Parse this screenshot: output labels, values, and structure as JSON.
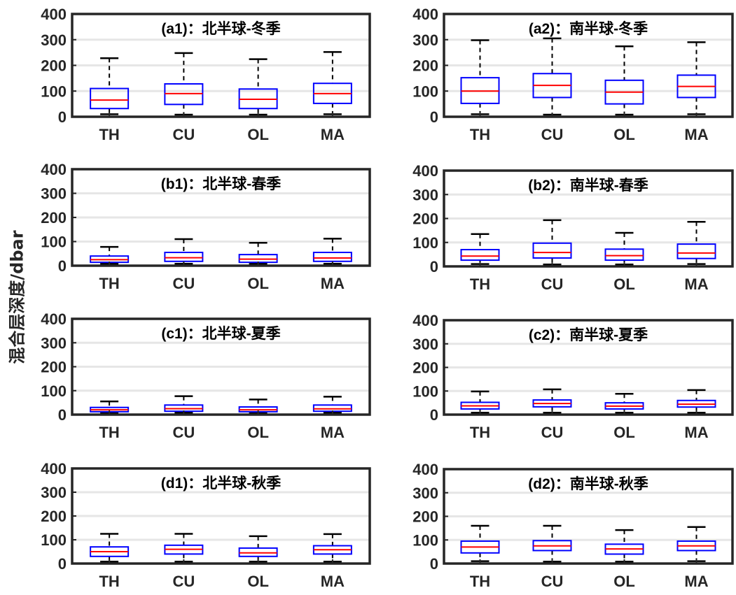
{
  "figure": {
    "ylabel": "混合层深度/dbar",
    "colors": {
      "box": "#0000FF",
      "median": "#FF0000",
      "whisker": "#000000",
      "axis": "#262626",
      "grid": "#E6E6E6"
    }
  },
  "chart_data": [
    {
      "type": "box",
      "title": "(a1)：北半球-冬季",
      "categories": [
        "TH",
        "CU",
        "OL",
        "MA"
      ],
      "ylim": [
        0,
        400
      ],
      "yticks": [
        0,
        100,
        200,
        300,
        400
      ],
      "grid": true,
      "boxes": [
        {
          "whislo": 10,
          "q1": 32,
          "med": 65,
          "q3": 110,
          "whishi": 228
        },
        {
          "whislo": 8,
          "q1": 48,
          "med": 90,
          "q3": 128,
          "whishi": 248
        },
        {
          "whislo": 8,
          "q1": 32,
          "med": 68,
          "q3": 108,
          "whishi": 224
        },
        {
          "whislo": 10,
          "q1": 52,
          "med": 90,
          "q3": 130,
          "whishi": 252
        }
      ]
    },
    {
      "type": "box",
      "title": "(a2)：南半球-冬季",
      "categories": [
        "TH",
        "CU",
        "OL",
        "MA"
      ],
      "ylim": [
        0,
        400
      ],
      "yticks": [
        0,
        100,
        200,
        300,
        400
      ],
      "grid": true,
      "boxes": [
        {
          "whislo": 10,
          "q1": 52,
          "med": 100,
          "q3": 152,
          "whishi": 298
        },
        {
          "whislo": 8,
          "q1": 75,
          "med": 122,
          "q3": 168,
          "whishi": 305
        },
        {
          "whislo": 8,
          "q1": 50,
          "med": 96,
          "q3": 142,
          "whishi": 274
        },
        {
          "whislo": 10,
          "q1": 75,
          "med": 118,
          "q3": 162,
          "whishi": 290
        }
      ]
    },
    {
      "type": "box",
      "title": "(b1)：北半球-春季",
      "categories": [
        "TH",
        "CU",
        "OL",
        "MA"
      ],
      "ylim": [
        0,
        400
      ],
      "yticks": [
        0,
        100,
        200,
        300,
        400
      ],
      "grid": true,
      "boxes": [
        {
          "whislo": 8,
          "q1": 14,
          "med": 25,
          "q3": 40,
          "whishi": 78
        },
        {
          "whislo": 8,
          "q1": 18,
          "med": 33,
          "q3": 55,
          "whishi": 110
        },
        {
          "whislo": 8,
          "q1": 14,
          "med": 27,
          "q3": 46,
          "whishi": 95
        },
        {
          "whislo": 8,
          "q1": 18,
          "med": 32,
          "q3": 55,
          "whishi": 112
        }
      ]
    },
    {
      "type": "box",
      "title": "(b2)：南半球-春季",
      "categories": [
        "TH",
        "CU",
        "OL",
        "MA"
      ],
      "ylim": [
        0,
        400
      ],
      "yticks": [
        0,
        100,
        200,
        300,
        400
      ],
      "grid": true,
      "boxes": [
        {
          "whislo": 10,
          "q1": 26,
          "med": 43,
          "q3": 70,
          "whishi": 135
        },
        {
          "whislo": 8,
          "q1": 35,
          "med": 58,
          "q3": 97,
          "whishi": 193
        },
        {
          "whislo": 8,
          "q1": 26,
          "med": 45,
          "q3": 72,
          "whishi": 140
        },
        {
          "whislo": 10,
          "q1": 33,
          "med": 56,
          "q3": 93,
          "whishi": 186
        }
      ]
    },
    {
      "type": "box",
      "title": "(c1)：北半球-夏季",
      "categories": [
        "TH",
        "CU",
        "OL",
        "MA"
      ],
      "ylim": [
        0,
        400
      ],
      "yticks": [
        0,
        100,
        200,
        300,
        400
      ],
      "grid": true,
      "boxes": [
        {
          "whislo": 8,
          "q1": 12,
          "med": 20,
          "q3": 30,
          "whishi": 55
        },
        {
          "whislo": 8,
          "q1": 14,
          "med": 25,
          "q3": 40,
          "whishi": 77
        },
        {
          "whislo": 8,
          "q1": 12,
          "med": 20,
          "q3": 32,
          "whishi": 63
        },
        {
          "whislo": 8,
          "q1": 14,
          "med": 24,
          "q3": 40,
          "whishi": 75
        }
      ]
    },
    {
      "type": "box",
      "title": "(c2)：南半球-夏季",
      "categories": [
        "TH",
        "CU",
        "OL",
        "MA"
      ],
      "ylim": [
        0,
        400
      ],
      "yticks": [
        0,
        100,
        200,
        300,
        400
      ],
      "grid": true,
      "boxes": [
        {
          "whislo": 8,
          "q1": 24,
          "med": 37,
          "q3": 52,
          "whishi": 98
        },
        {
          "whislo": 8,
          "q1": 33,
          "med": 47,
          "q3": 62,
          "whishi": 107
        },
        {
          "whislo": 8,
          "q1": 24,
          "med": 36,
          "q3": 50,
          "whishi": 88
        },
        {
          "whislo": 8,
          "q1": 32,
          "med": 44,
          "q3": 60,
          "whishi": 104
        }
      ]
    },
    {
      "type": "box",
      "title": "(d1)：北半球-秋季",
      "categories": [
        "TH",
        "CU",
        "OL",
        "MA"
      ],
      "ylim": [
        0,
        400
      ],
      "yticks": [
        0,
        100,
        200,
        300,
        400
      ],
      "grid": true,
      "boxes": [
        {
          "whislo": 8,
          "q1": 30,
          "med": 50,
          "q3": 70,
          "whishi": 125
        },
        {
          "whislo": 8,
          "q1": 40,
          "med": 60,
          "q3": 77,
          "whishi": 125
        },
        {
          "whislo": 8,
          "q1": 30,
          "med": 45,
          "q3": 65,
          "whishi": 115
        },
        {
          "whislo": 8,
          "q1": 40,
          "med": 58,
          "q3": 75,
          "whishi": 124
        }
      ]
    },
    {
      "type": "box",
      "title": "(d2)：南半球-秋季",
      "categories": [
        "TH",
        "CU",
        "OL",
        "MA"
      ],
      "ylim": [
        0,
        400
      ],
      "yticks": [
        0,
        100,
        200,
        300,
        400
      ],
      "grid": true,
      "boxes": [
        {
          "whislo": 10,
          "q1": 45,
          "med": 70,
          "q3": 95,
          "whishi": 160
        },
        {
          "whislo": 8,
          "q1": 55,
          "med": 75,
          "q3": 97,
          "whishi": 160
        },
        {
          "whislo": 8,
          "q1": 40,
          "med": 62,
          "q3": 82,
          "whishi": 142
        },
        {
          "whislo": 10,
          "q1": 55,
          "med": 75,
          "q3": 95,
          "whishi": 155
        }
      ]
    }
  ]
}
